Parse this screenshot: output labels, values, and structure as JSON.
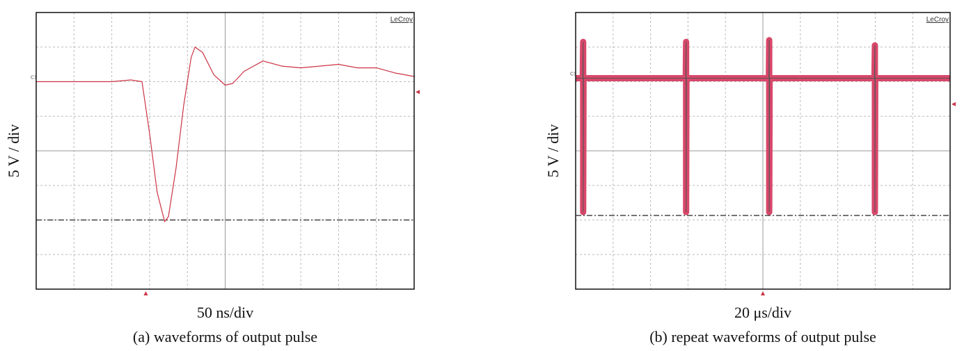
{
  "chart_data": [
    {
      "type": "line",
      "ylabel": "5 V / div",
      "xlabel": "50 ns/div",
      "caption": "(a) waveforms of output pulse",
      "brand": "LeCroy",
      "channel_label": "C1",
      "xlim": [
        0,
        10
      ],
      "ylim": [
        -4,
        4
      ],
      "xticks": [
        0,
        1,
        2,
        3,
        4,
        5,
        6,
        7,
        8,
        9,
        10
      ],
      "yticks": [
        -4,
        -3,
        -2,
        -1,
        0,
        1,
        2,
        3,
        4
      ],
      "grid": true,
      "hline": -2.0,
      "x": [
        0,
        1,
        2,
        2.5,
        2.8,
        3.0,
        3.2,
        3.4,
        3.5,
        3.7,
        3.9,
        4.1,
        4.2,
        4.4,
        4.7,
        5.0,
        5.2,
        5.5,
        6.0,
        6.5,
        7.0,
        7.5,
        8.0,
        8.5,
        9.0,
        9.5,
        10
      ],
      "series": [
        {
          "color": "#cc3344",
          "values": [
            2.0,
            2.0,
            2.0,
            2.05,
            2.0,
            0.5,
            -1.2,
            -2.05,
            -1.9,
            -0.5,
            1.3,
            2.7,
            3.0,
            2.85,
            2.2,
            1.9,
            1.95,
            2.3,
            2.6,
            2.45,
            2.4,
            2.45,
            2.5,
            2.4,
            2.4,
            2.25,
            2.15
          ]
        }
      ]
    },
    {
      "type": "line",
      "ylabel": "5 V / div",
      "xlabel": "20 μs/div",
      "caption": "(b) repeat waveforms of output pulse",
      "brand": "LeCroy",
      "channel_label": "C1",
      "xlim": [
        0,
        10
      ],
      "ylim": [
        -4,
        4
      ],
      "xticks": [
        0,
        1,
        2,
        3,
        4,
        5,
        6,
        7,
        8,
        9,
        10
      ],
      "yticks": [
        -4,
        -3,
        -2,
        -1,
        0,
        1,
        2,
        3,
        4
      ],
      "grid": true,
      "hline": -1.87,
      "x": [
        0,
        0.19,
        0.2,
        0.2,
        0.21,
        2.94,
        2.95,
        2.95,
        2.96,
        5.16,
        5.17,
        5.17,
        5.18,
        7.98,
        7.99,
        7.99,
        8.0,
        10
      ],
      "series": [
        {
          "color": "#d9476a",
          "values": [
            2.1,
            2.1,
            3.15,
            -1.77,
            2.1,
            2.1,
            3.15,
            -1.77,
            2.1,
            2.1,
            3.2,
            -1.77,
            2.1,
            2.1,
            3.05,
            -1.77,
            2.1,
            2.1
          ]
        }
      ]
    }
  ]
}
